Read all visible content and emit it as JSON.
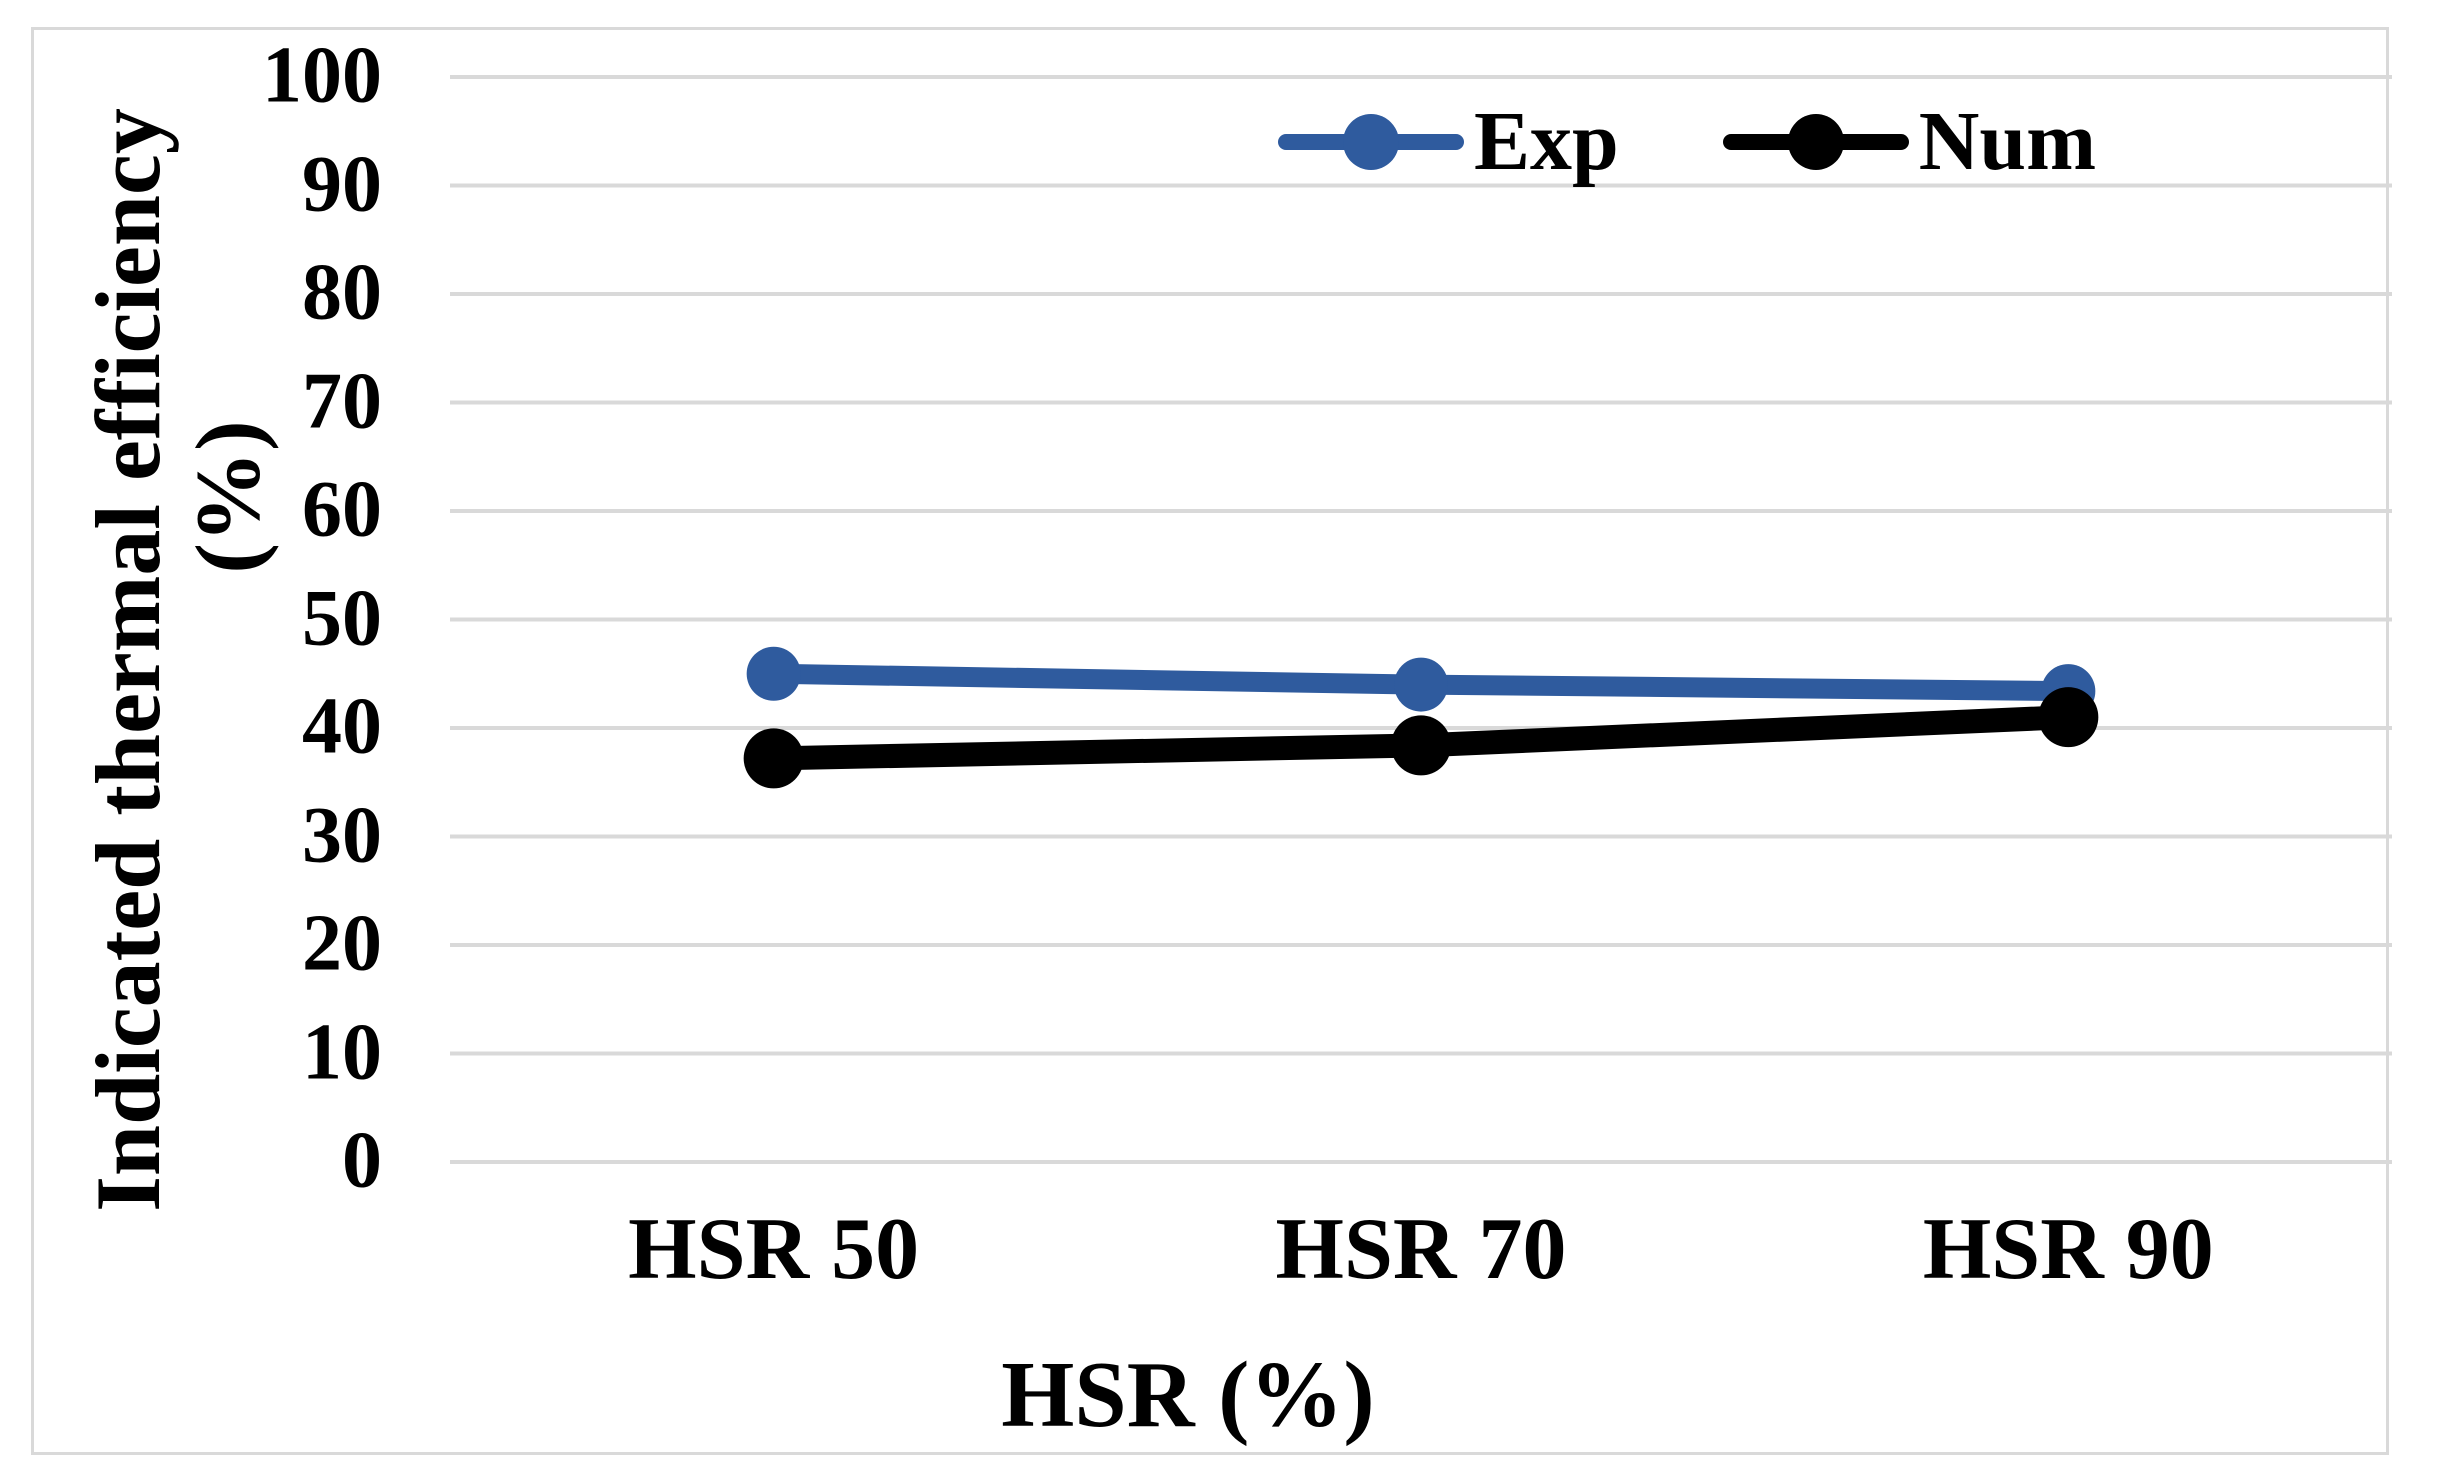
{
  "chart_data": {
    "type": "line",
    "title": "",
    "categories": [
      "HSR 50",
      "HSR 70",
      "HSR 90"
    ],
    "series": [
      {
        "name": "Exp",
        "color": "#2F5B9E",
        "values": [
          45,
          44,
          43.4
        ]
      },
      {
        "name": "Num",
        "color": "#000000",
        "values": [
          37.2,
          38.4,
          41
        ]
      }
    ],
    "xlabel": "HSR (%)",
    "ylabel": "Indicated thermal efficiency (%)",
    "ylabel_line1": "Indicated thermal efficiency",
    "ylabel_line2": "(%)",
    "ylim": [
      0,
      100
    ],
    "yticks": [
      100,
      90,
      80,
      70,
      60,
      50,
      40,
      30,
      20,
      10,
      0
    ],
    "grid": "horizontal",
    "legend_position": "top-right",
    "legend": [
      "Exp",
      "Num"
    ],
    "colors": {
      "exp_blue": "#2F5B9E",
      "num_black": "#000000",
      "gridline": "#D9D9D9",
      "figure_border": "#D9D9D9",
      "background": "#FFFFFF"
    }
  }
}
